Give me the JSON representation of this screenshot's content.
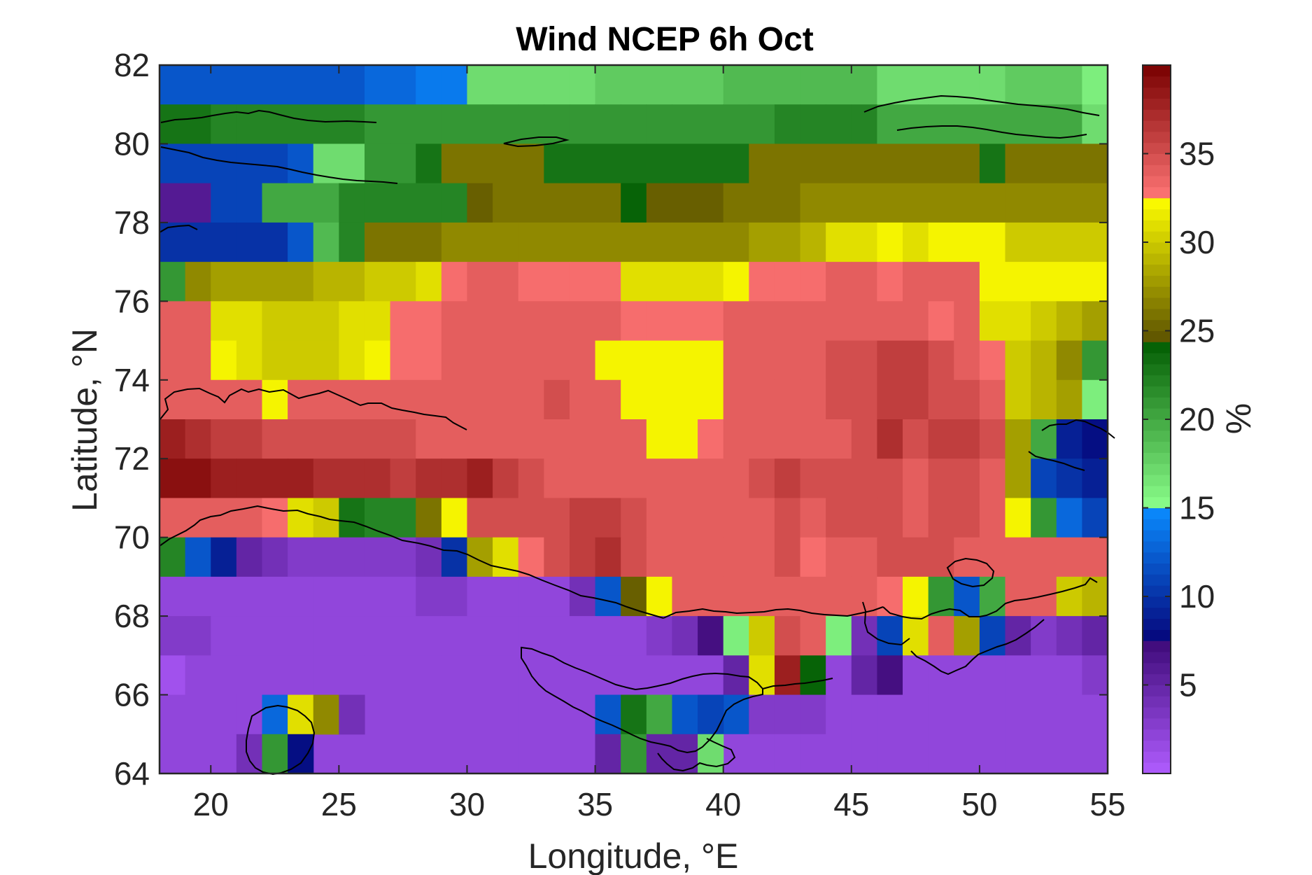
{
  "chart_data": {
    "type": "heatmap",
    "title": "Wind NCEP 6h Oct",
    "xlabel": "Longitude, °E",
    "ylabel": "Latitude, °N",
    "colorbar_label": "%",
    "x_ticks": [
      20,
      25,
      30,
      35,
      40,
      45,
      50,
      55
    ],
    "y_ticks": [
      64,
      66,
      68,
      70,
      72,
      74,
      76,
      78,
      80,
      82
    ],
    "colorbar_ticks": [
      5,
      10,
      15,
      20,
      25,
      30,
      35
    ],
    "xlim": [
      18,
      55
    ],
    "ylim": [
      64,
      82
    ],
    "clim": [
      0,
      40
    ],
    "colormap": [
      {
        "from": 0,
        "to": 7.5,
        "start": "#b05cff",
        "end": "#3d0a78"
      },
      {
        "from": 7.5,
        "to": 15,
        "start": "#05057a",
        "end": "#0a8cff"
      },
      {
        "from": 15,
        "to": 24.5,
        "start": "#8cff8c",
        "end": "#005a00"
      },
      {
        "from": 24.5,
        "to": 32.5,
        "start": "#5e5400",
        "end": "#ffff00"
      },
      {
        "from": 32.5,
        "to": 40,
        "start": "#ff7575",
        "end": "#780000"
      }
    ],
    "x_centers": [
      18.5,
      19.5,
      20.5,
      21.5,
      22.5,
      23.5,
      24.5,
      25.5,
      26.5,
      27.5,
      28.5,
      29.5,
      30.5,
      31.5,
      32.5,
      33.5,
      34.5,
      35.5,
      36.5,
      37.5,
      38.5,
      39.5,
      40.5,
      41.5,
      42.5,
      43.5,
      44.5,
      45.5,
      46.5,
      47.5,
      48.5,
      49.5,
      50.5,
      51.5,
      52.5,
      53.5,
      54.5
    ],
    "y_centers": [
      81.5,
      80.5,
      79.5,
      78.5,
      77.5,
      76.5,
      75.5,
      74.5,
      73.5,
      72.5,
      71.5,
      70.5,
      69.5,
      68.5,
      67.5,
      66.5,
      65.5,
      64.5
    ],
    "values": [
      [
        12,
        12,
        12,
        12,
        12,
        12,
        12,
        12,
        13,
        13,
        14,
        14,
        17,
        17,
        17,
        17,
        17,
        18,
        18,
        18,
        18,
        18,
        19,
        19,
        19,
        19,
        19,
        19,
        17,
        17,
        17,
        17,
        17,
        18,
        18,
        18,
        16
      ],
      [
        23,
        23,
        22,
        22,
        22,
        22,
        22,
        22,
        21,
        21,
        21,
        21,
        21,
        21,
        21,
        21,
        21,
        21,
        21,
        21,
        21,
        21,
        21,
        21,
        22,
        22,
        22,
        22,
        20,
        20,
        20,
        20,
        20,
        20,
        20,
        20,
        17
      ],
      [
        11,
        11,
        11,
        11,
        11,
        12,
        17,
        17,
        21,
        21,
        23,
        26,
        26,
        26,
        26,
        23,
        23,
        23,
        23,
        23,
        23,
        23,
        23,
        26,
        26,
        26,
        26,
        26,
        26,
        26,
        26,
        26,
        23,
        26,
        26,
        26,
        26
      ],
      [
        6,
        6,
        11,
        11,
        20,
        20,
        20,
        22,
        22,
        22,
        22,
        22,
        25,
        26,
        26,
        26,
        26,
        26,
        24,
        25,
        25,
        25,
        26,
        26,
        26,
        27,
        27,
        27,
        27,
        27,
        27,
        27,
        27,
        27,
        27,
        27,
        27
      ],
      [
        10,
        10,
        10,
        10,
        10,
        12,
        19,
        22,
        26,
        26,
        26,
        27,
        27,
        27,
        27,
        27,
        27,
        27,
        27,
        27,
        27,
        27,
        27,
        28,
        28,
        29,
        31,
        31,
        32,
        31,
        32,
        32,
        32,
        30,
        30,
        30,
        30
      ],
      [
        21,
        27,
        28,
        28,
        28,
        28,
        29,
        29,
        30,
        30,
        31,
        33,
        34,
        34,
        33,
        33,
        33,
        33,
        31,
        31,
        31,
        31,
        32,
        33,
        33,
        33,
        34,
        34,
        33,
        34,
        34,
        34,
        32,
        32,
        32,
        32,
        32
      ],
      [
        34,
        34,
        31,
        31,
        30,
        30,
        30,
        31,
        31,
        33,
        33,
        34,
        34,
        34,
        34,
        34,
        34,
        34,
        33,
        33,
        33,
        33,
        34,
        34,
        34,
        34,
        34,
        34,
        34,
        34,
        33,
        34,
        31,
        31,
        30,
        29,
        28
      ],
      [
        34,
        34,
        32,
        31,
        30,
        30,
        30,
        31,
        32,
        33,
        33,
        34,
        34,
        34,
        34,
        34,
        34,
        32,
        32,
        32,
        32,
        32,
        34,
        34,
        34,
        34,
        35,
        35,
        36,
        36,
        35,
        34,
        33,
        30,
        29,
        27,
        21
      ],
      [
        34,
        34,
        34,
        34,
        32,
        34,
        34,
        34,
        34,
        34,
        34,
        34,
        34,
        34,
        34,
        35,
        34,
        34,
        32,
        32,
        32,
        32,
        34,
        34,
        34,
        34,
        35,
        35,
        36,
        36,
        35,
        35,
        34,
        30,
        29,
        28,
        16
      ],
      [
        38,
        37,
        36,
        36,
        35,
        35,
        35,
        35,
        35,
        35,
        34,
        34,
        34,
        34,
        34,
        34,
        34,
        34,
        34,
        32,
        32,
        33,
        34,
        34,
        34,
        34,
        34,
        35,
        37,
        35,
        36,
        36,
        35,
        28,
        20,
        9,
        8
      ],
      [
        39,
        39,
        38,
        38,
        38,
        38,
        37,
        37,
        37,
        36,
        37,
        37,
        38,
        36,
        35,
        34,
        34,
        34,
        34,
        34,
        34,
        34,
        34,
        35,
        36,
        35,
        35,
        35,
        35,
        34,
        35,
        35,
        34,
        28,
        11,
        10,
        9
      ],
      [
        34,
        34,
        34,
        34,
        33,
        31,
        30,
        23,
        22,
        22,
        26,
        32,
        35,
        35,
        35,
        35,
        36,
        36,
        35,
        34,
        34,
        34,
        34,
        34,
        35,
        34,
        35,
        35,
        35,
        34,
        35,
        35,
        34,
        32,
        21,
        13,
        11
      ],
      [
        22,
        12,
        9,
        5,
        4,
        3,
        3,
        3,
        3,
        3,
        4,
        10,
        28,
        31,
        33,
        35,
        36,
        37,
        35,
        34,
        34,
        34,
        34,
        34,
        35,
        33,
        34,
        34,
        35,
        35,
        35,
        34,
        34,
        34,
        34,
        34,
        34
      ],
      [
        2,
        2,
        2,
        2,
        2,
        2,
        2,
        2,
        2,
        2,
        3,
        3,
        2,
        2,
        2,
        2,
        4,
        12,
        25,
        32,
        34,
        34,
        34,
        34,
        34,
        34,
        34,
        34,
        33,
        32,
        21,
        12,
        20,
        34,
        34,
        30,
        29
      ],
      [
        3,
        3,
        2,
        2,
        2,
        2,
        2,
        2,
        2,
        2,
        2,
        2,
        2,
        2,
        2,
        2,
        2,
        2,
        2,
        3,
        4,
        7,
        16,
        30,
        35,
        34,
        16,
        4,
        11,
        31,
        34,
        28,
        11,
        5,
        3,
        4,
        5
      ],
      [
        1,
        2,
        2,
        2,
        2,
        2,
        2,
        2,
        2,
        2,
        2,
        2,
        2,
        2,
        2,
        2,
        2,
        2,
        2,
        2,
        2,
        2,
        5,
        31,
        38,
        24,
        2,
        5,
        7,
        2,
        2,
        2,
        2,
        2,
        2,
        2,
        3
      ],
      [
        2,
        2,
        2,
        2,
        2,
        2,
        2,
        2,
        2,
        2,
        2,
        2,
        2,
        2,
        2,
        2,
        2,
        12,
        22,
        19,
        12,
        11,
        12,
        3,
        3,
        3,
        2,
        2,
        2,
        2,
        2,
        2,
        2,
        2,
        2,
        2,
        2
      ],
      [
        2,
        2,
        2,
        2,
        2,
        2,
        2,
        2,
        2,
        2,
        2,
        2,
        2,
        2,
        2,
        2,
        2,
        5,
        21,
        5,
        5,
        17,
        2,
        2,
        2,
        2,
        2,
        2,
        2,
        2,
        2,
        2,
        2,
        2,
        2,
        2,
        2
      ]
    ],
    "patches": [
      {
        "lon": [
          21,
          25
        ],
        "lat": [
          64,
          66
        ],
        "values": [
          [
            2,
            2,
            2,
            2
          ],
          [
            2,
            2,
            2,
            2
          ]
        ]
      },
      {
        "lon": [
          22,
          23
        ],
        "lat": [
          65,
          66
        ],
        "values": [
          [
            13
          ]
        ]
      },
      {
        "lon": [
          23,
          24
        ],
        "lat": [
          65,
          66
        ],
        "values": [
          [
            31
          ]
        ]
      },
      {
        "lon": [
          24,
          25
        ],
        "lat": [
          65,
          66
        ],
        "values": [
          [
            27
          ]
        ]
      },
      {
        "lon": [
          25,
          26
        ],
        "lat": [
          65,
          66
        ],
        "values": [
          [
            4
          ]
        ]
      },
      {
        "lon": [
          21,
          22
        ],
        "lat": [
          64,
          65
        ],
        "values": [
          [
            4
          ]
        ]
      },
      {
        "lon": [
          22,
          23
        ],
        "lat": [
          64,
          65
        ],
        "values": [
          [
            21
          ]
        ]
      },
      {
        "lon": [
          23,
          24
        ],
        "lat": [
          64,
          65
        ],
        "values": [
          [
            8
          ]
        ]
      },
      {
        "lon": [
          35,
          36
        ],
        "lat": [
          65,
          66
        ],
        "values": [
          [
            12
          ]
        ]
      },
      {
        "lon": [
          36,
          37
        ],
        "lat": [
          65,
          66
        ],
        "values": [
          [
            23
          ]
        ]
      },
      {
        "lon": [
          37,
          38
        ],
        "lat": [
          65,
          66
        ],
        "values": [
          [
            20
          ]
        ]
      },
      {
        "lon": [
          38,
          39
        ],
        "lat": [
          65,
          66
        ],
        "values": [
          [
            12
          ]
        ]
      },
      {
        "lon": [
          39,
          40
        ],
        "lat": [
          65,
          66
        ],
        "values": [
          [
            11
          ]
        ]
      },
      {
        "lon": [
          35,
          36
        ],
        "lat": [
          64,
          65
        ],
        "values": [
          [
            5
          ]
        ]
      },
      {
        "lon": [
          36,
          37
        ],
        "lat": [
          64,
          65
        ],
        "values": [
          [
            21
          ]
        ]
      },
      {
        "lon": [
          37,
          38
        ],
        "lat": [
          64,
          65
        ],
        "values": [
          [
            5
          ]
        ]
      },
      {
        "lon": [
          38,
          39
        ],
        "lat": [
          64,
          65
        ],
        "values": [
          [
            5
          ]
        ]
      },
      {
        "lon": [
          39,
          40
        ],
        "lat": [
          64,
          65
        ],
        "values": [
          [
            17
          ]
        ]
      }
    ]
  }
}
